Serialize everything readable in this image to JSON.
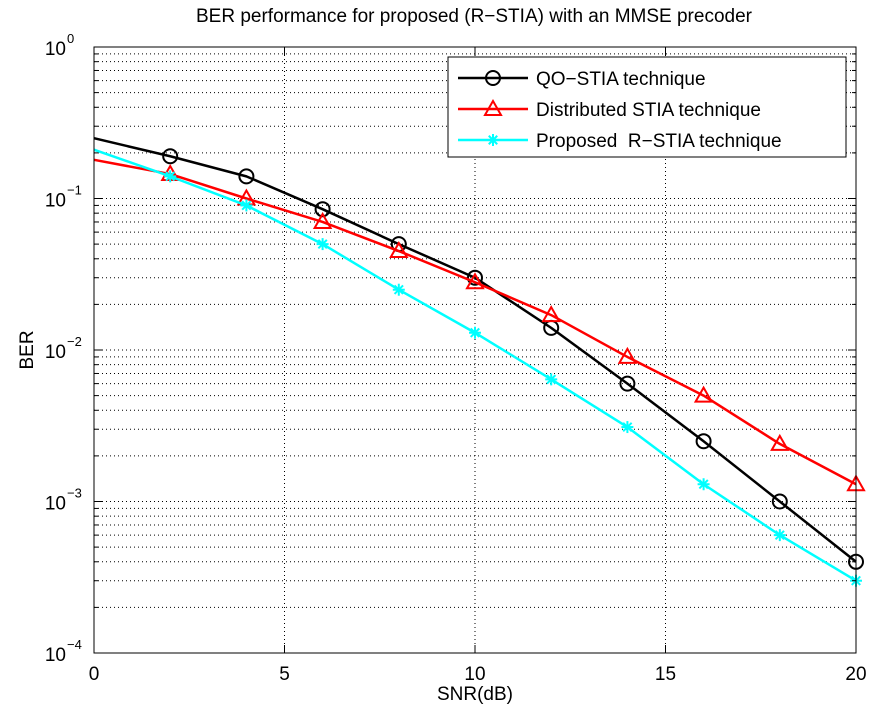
{
  "chart_data": {
    "type": "line",
    "title": "BER performance for proposed (R−STIA) with an MMSE precoder",
    "xlabel": "SNR(dB)",
    "ylabel": "BER",
    "xlim": [
      0,
      20
    ],
    "ylim": [
      0.0001,
      1
    ],
    "yscale": "log",
    "grid": true,
    "legend_position": "top-right",
    "x_ticks": [
      0,
      5,
      10,
      15,
      20
    ],
    "x_tick_labels": [
      "0",
      "5",
      "10",
      "15",
      "20"
    ],
    "y_ticks": [
      0.0001,
      0.001,
      0.01,
      0.1,
      1
    ],
    "y_tick_labels": [
      {
        "base": "10",
        "exp": "−4"
      },
      {
        "base": "10",
        "exp": "−3"
      },
      {
        "base": "10",
        "exp": "−2"
      },
      {
        "base": "10",
        "exp": "−1"
      },
      {
        "base": "10",
        "exp": "0"
      }
    ],
    "series": [
      {
        "name": "QO−STIA technique",
        "color": "#000000",
        "marker": "circle",
        "x": [
          0,
          2,
          4,
          6,
          8,
          10,
          12,
          14,
          16,
          18,
          20
        ],
        "y": [
          0.25,
          0.19,
          0.14,
          0.085,
          0.05,
          0.03,
          0.014,
          0.006,
          0.0025,
          0.001,
          0.0004
        ],
        "marker_x": [
          2,
          4,
          6,
          8,
          10,
          12,
          14,
          16,
          18,
          20
        ]
      },
      {
        "name": "Distributed STIA technique",
        "color": "#ff0000",
        "marker": "triangle",
        "x": [
          0,
          2,
          4,
          6,
          8,
          10,
          12,
          14,
          16,
          18,
          20
        ],
        "y": [
          0.18,
          0.145,
          0.1,
          0.07,
          0.045,
          0.028,
          0.017,
          0.009,
          0.005,
          0.0024,
          0.0013
        ],
        "marker_x": [
          2,
          4,
          6,
          8,
          10,
          12,
          14,
          16,
          18,
          20
        ]
      },
      {
        "name": "Proposed  R−STIA technique",
        "color": "#00ffff",
        "marker": "asterisk",
        "x": [
          0,
          2,
          4,
          6,
          8,
          10,
          12,
          14,
          16,
          18,
          20
        ],
        "y": [
          0.21,
          0.14,
          0.09,
          0.05,
          0.025,
          0.013,
          0.0064,
          0.0031,
          0.0013,
          0.0006,
          0.0003
        ],
        "marker_x": [
          2,
          4,
          6,
          8,
          10,
          12,
          14,
          16,
          18,
          20
        ]
      }
    ]
  }
}
